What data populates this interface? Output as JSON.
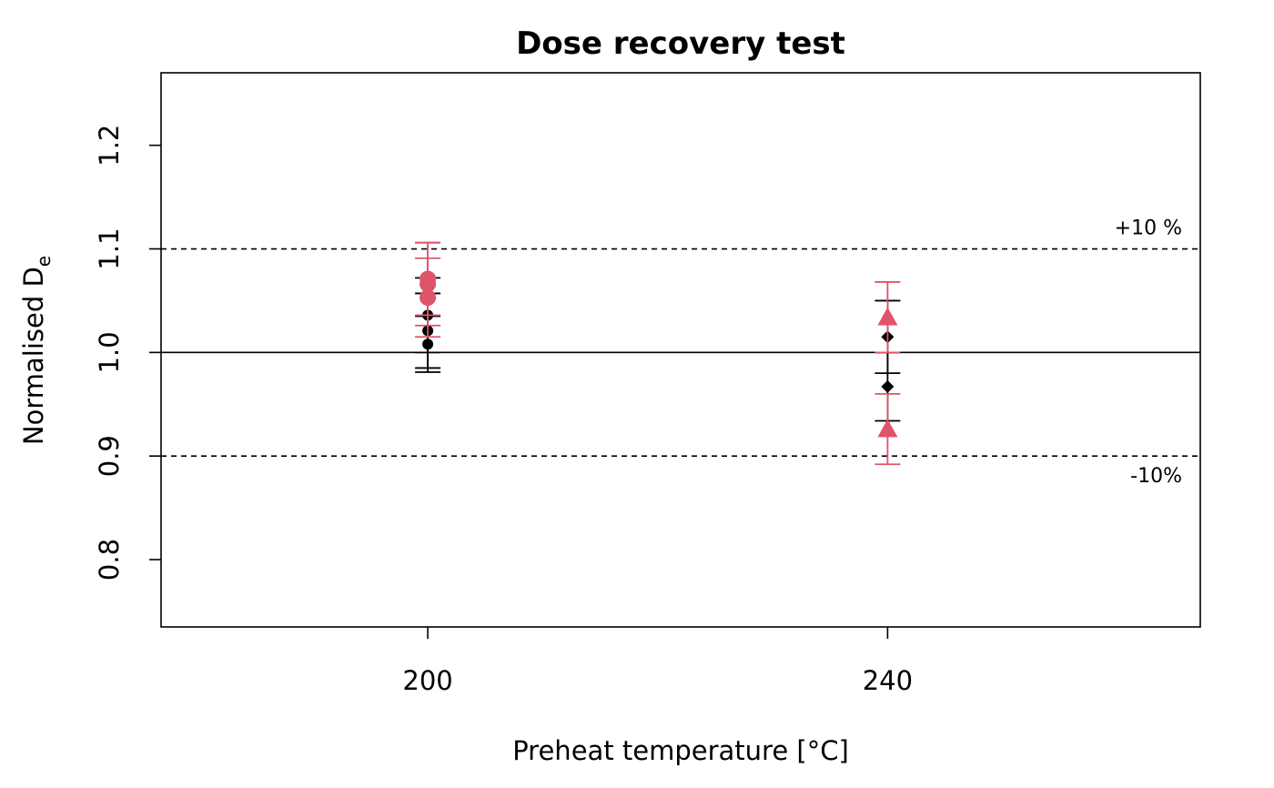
{
  "chart_data": {
    "type": "scatter",
    "title": "Dose recovery test",
    "xlabel": "Preheat temperature [°C]",
    "ylabel": "Normalised D",
    "ylabel_subscript": "e",
    "x_categories": [
      "200",
      "240"
    ],
    "yticks": [
      "0.8",
      "0.9",
      "1.0",
      "1.1",
      "1.2"
    ],
    "ylim": [
      0.735,
      1.27
    ],
    "xlim": [
      0.42,
      2.68
    ],
    "reference_lines": [
      {
        "value": 1.0,
        "style": "solid"
      },
      {
        "value": 1.1,
        "style": "dashed",
        "label": "+10 %"
      },
      {
        "value": 0.9,
        "style": "dashed",
        "label": "-10%"
      }
    ],
    "colors": {
      "black": "#000000",
      "red": "#df536b"
    },
    "series": [
      {
        "color": "#000000",
        "points": [
          {
            "x": 1,
            "y": 1.008,
            "err": 0.027,
            "shape": "circle"
          },
          {
            "x": 1,
            "y": 1.021,
            "err": 0.036,
            "shape": "circle"
          },
          {
            "x": 1,
            "y": 1.036,
            "err": 0.036,
            "shape": "circle"
          },
          {
            "x": 2,
            "y": 1.015,
            "err": 0.035,
            "shape": "diamond"
          },
          {
            "x": 2,
            "y": 0.967,
            "err": 0.033,
            "shape": "diamond"
          }
        ]
      },
      {
        "color": "#df536b",
        "points": [
          {
            "x": 1,
            "y": 1.071,
            "err": 0.035,
            "shape": "circle"
          },
          {
            "x": 1,
            "y": 1.066,
            "err": 0.04,
            "shape": "circle"
          },
          {
            "x": 1,
            "y": 1.053,
            "err": 0.038,
            "shape": "circle"
          },
          {
            "x": 2,
            "y": 1.034,
            "err": 0.034,
            "shape": "triangle"
          },
          {
            "x": 2,
            "y": 0.926,
            "err": 0.034,
            "shape": "triangle"
          }
        ]
      }
    ]
  }
}
